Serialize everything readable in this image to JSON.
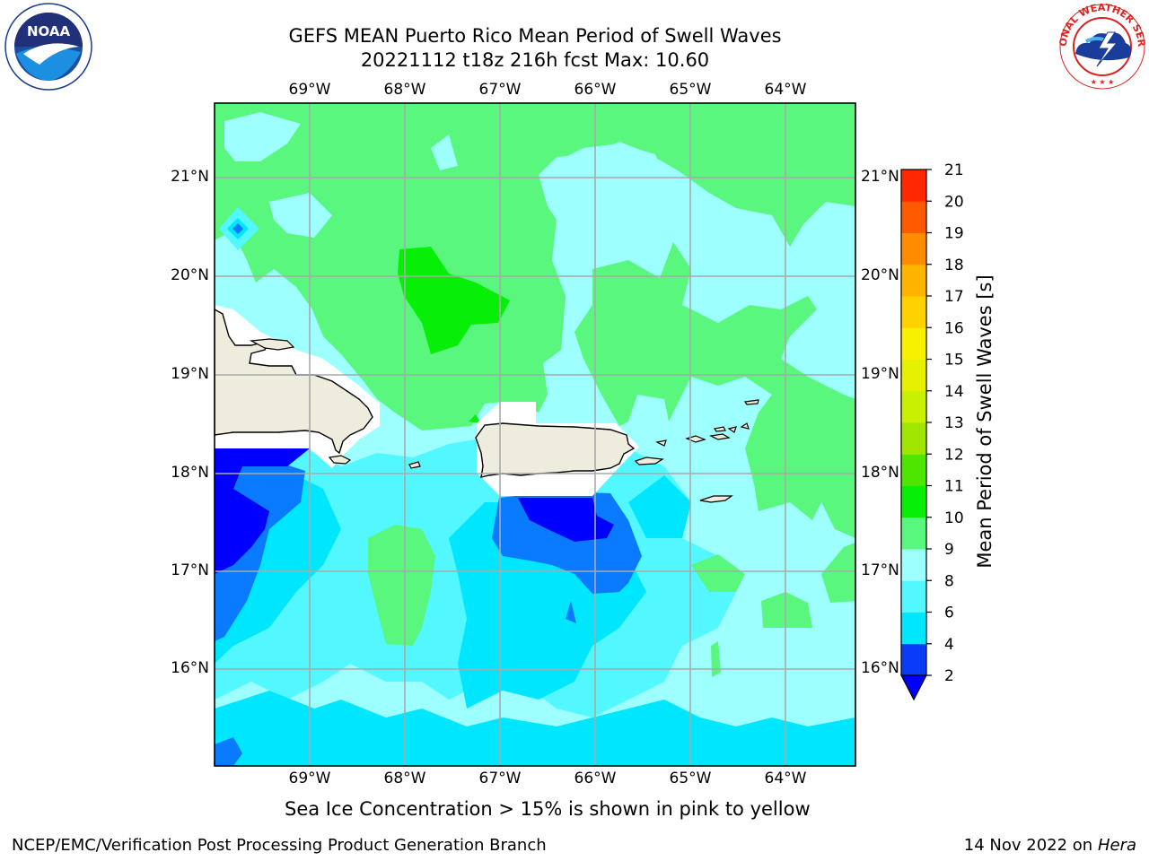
{
  "title": {
    "line1": "GEFS MEAN Puerto Rico Mean Period of Swell Waves",
    "line2": "20221112 t18z 216h fcst   Max: 10.60"
  },
  "logos": {
    "noaa": {
      "text": "NOAA",
      "ring_text": "NATIONAL OCEANIC AND ATMOSPHERIC ADMINISTRATION · U.S. DEPARTMENT OF COMMERCE"
    },
    "nws": {
      "ring_text": "NATIONAL WEATHER SERVICE"
    }
  },
  "map": {
    "lon_labels": [
      "69°W",
      "68°W",
      "67°W",
      "66°W",
      "65°W",
      "64°W"
    ],
    "lat_labels": [
      "21°N",
      "20°N",
      "19°N",
      "18°N",
      "17°N",
      "16°N"
    ],
    "colors": {
      "land": "#eeecdc",
      "no_data": "#ffffff",
      "grid": "#a9a9a9"
    }
  },
  "colorbar": {
    "title": "Mean Period of Swell Waves [s]",
    "ticks": [
      "2",
      "4",
      "6",
      "8",
      "9",
      "10",
      "11",
      "12",
      "13",
      "14",
      "15",
      "16",
      "17",
      "18",
      "19",
      "20",
      "21"
    ],
    "colors": [
      "#0a3cf8",
      "#00e6ff",
      "#52f7ff",
      "#9dfffe",
      "#5af77e",
      "#07ee07",
      "#4ce600",
      "#a0e600",
      "#c9f000",
      "#e6f000",
      "#f7f000",
      "#ffd200",
      "#ffb400",
      "#ff8c00",
      "#ff5a00",
      "#ff2800"
    ],
    "under_color": "#0000ff"
  },
  "footer": {
    "note": "Sea Ice Concentration > 15% is shown in pink to yellow",
    "credit": "NCEP/EMC/Verification Post Processing Product Generation Branch",
    "date": "14 Nov 2022 on",
    "machine": "Hera"
  }
}
